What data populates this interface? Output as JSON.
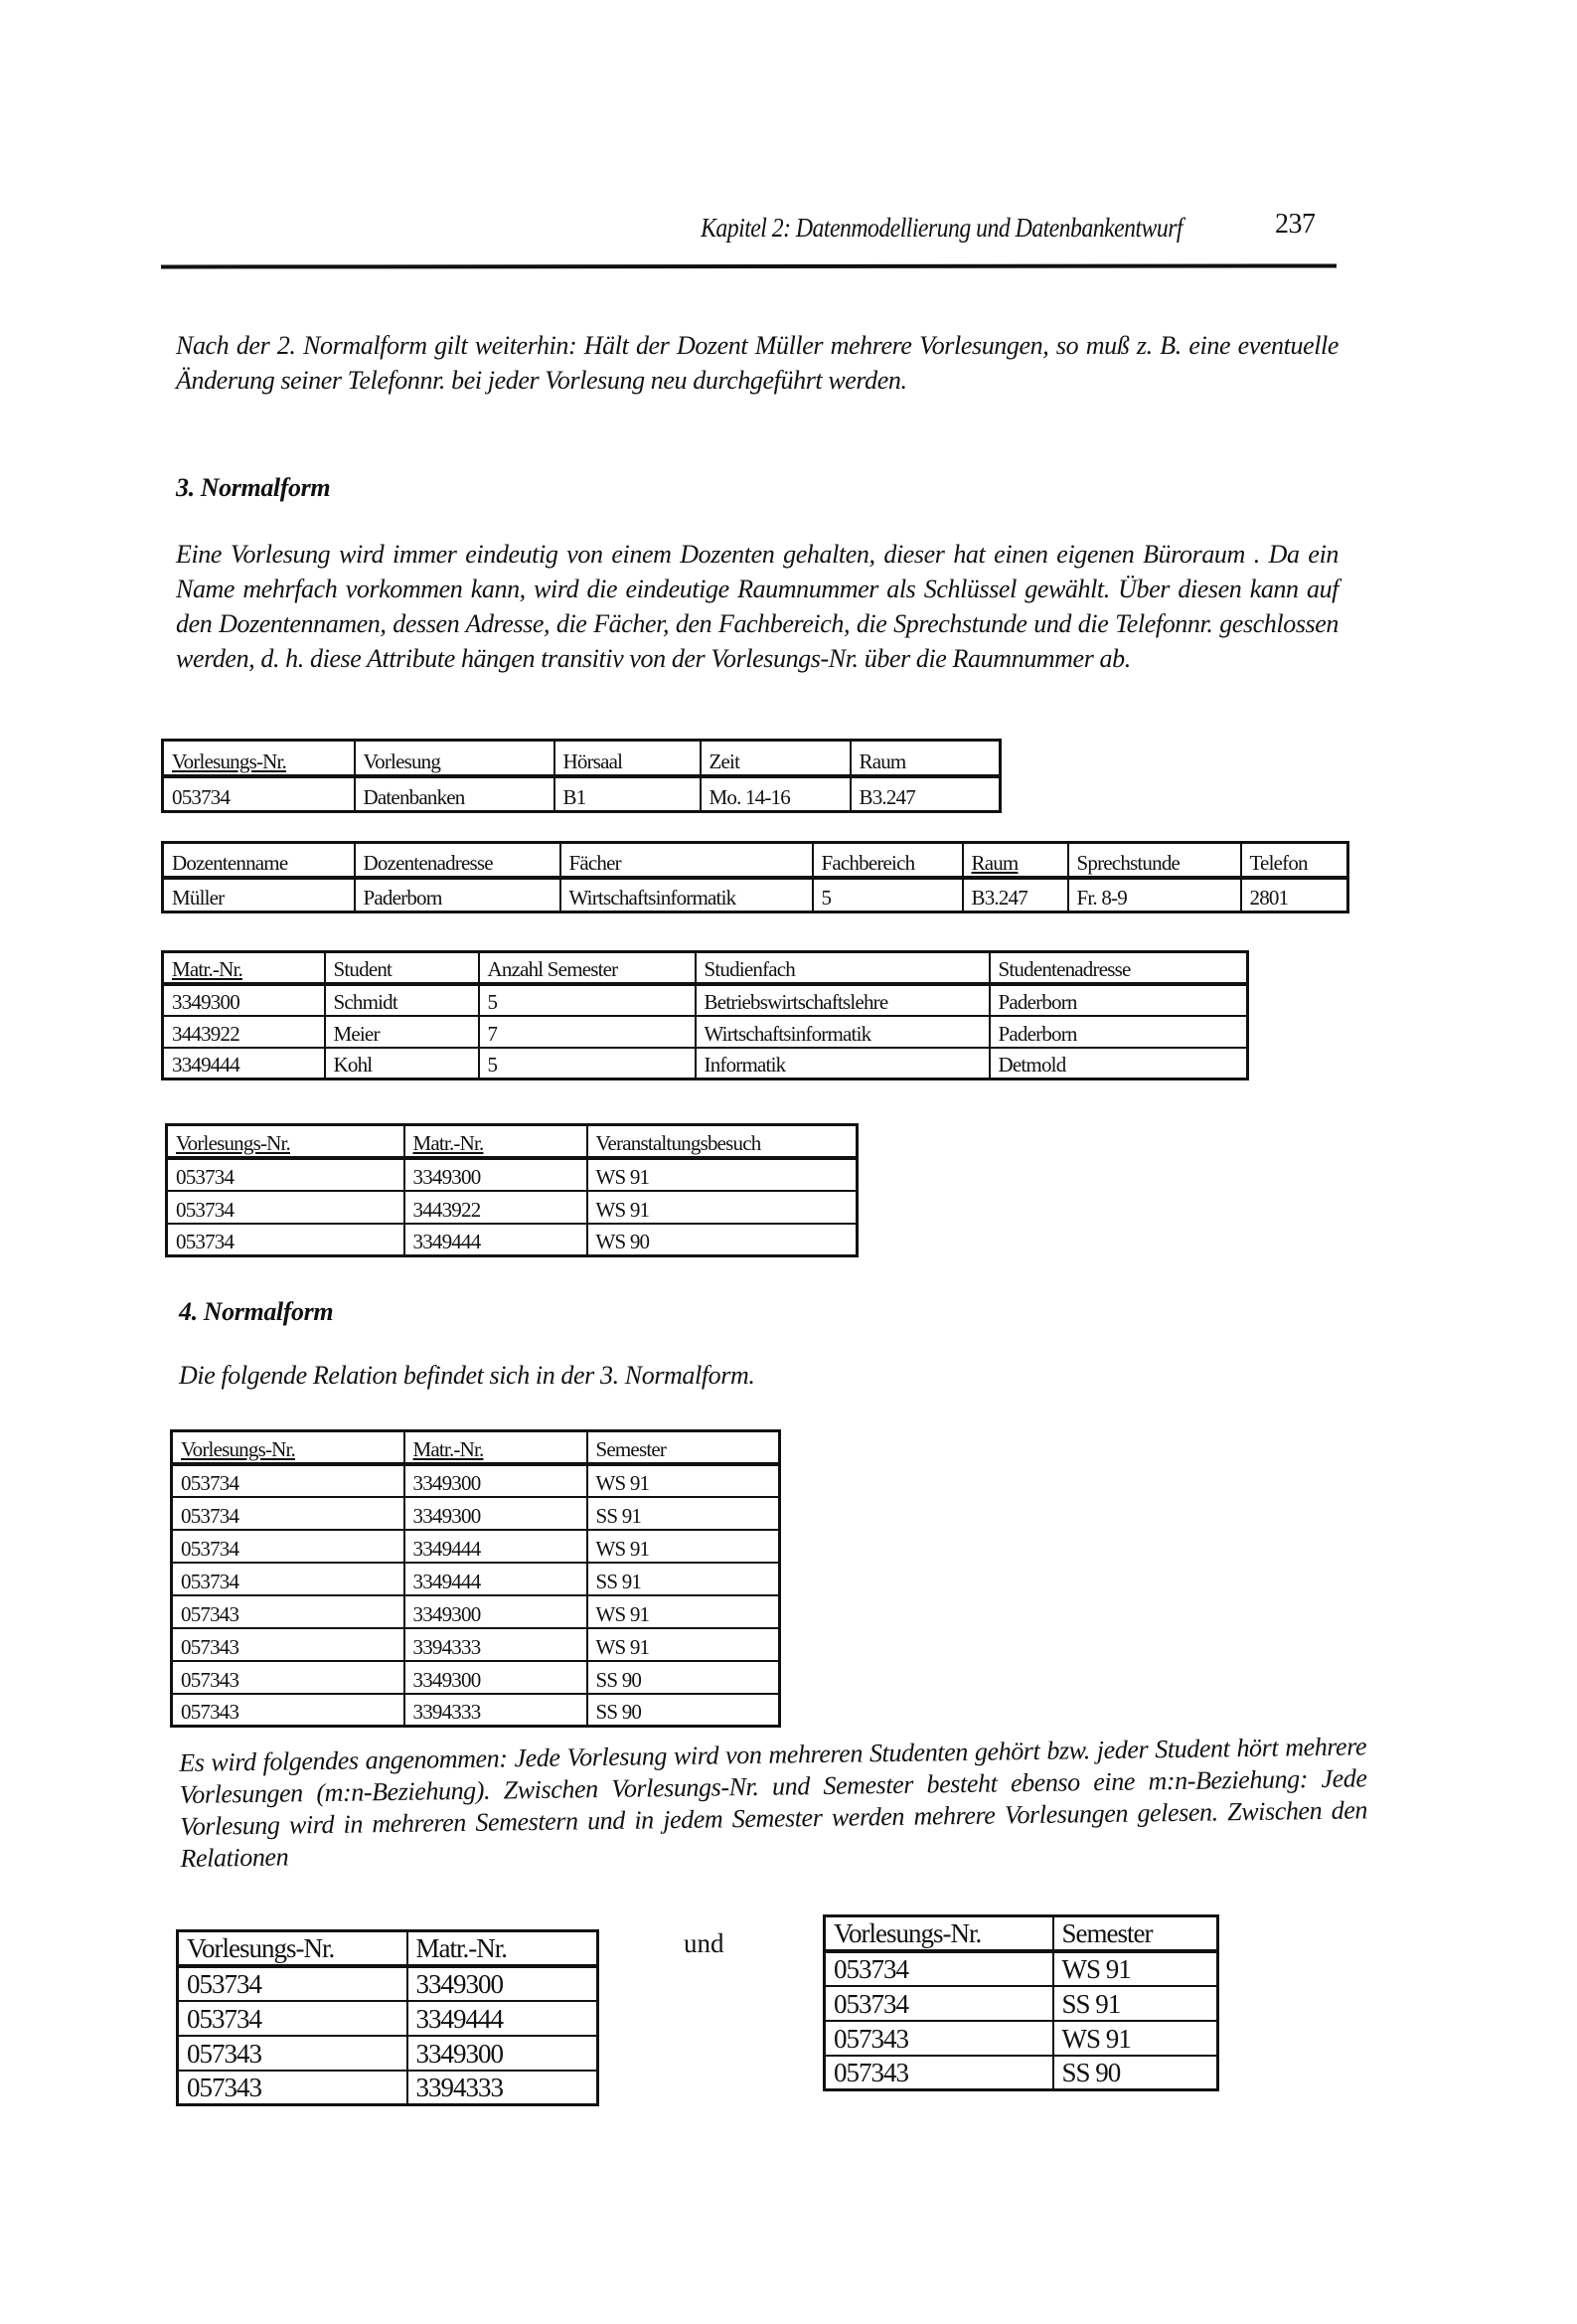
{
  "header": {
    "chapter_title": "Kapitel 2: Datenmodellierung und Datenbankentwurf",
    "page_number": "237"
  },
  "paragraphs": {
    "p1": "Nach der 2. Normalform gilt weiterhin: Hält der Dozent Müller mehrere Vorlesungen, so muß z. B. eine eventuelle Änderung seiner Telefonnr. bei jeder Vorlesung neu durchgeführt werden.",
    "h3": "3. Normalform",
    "p2": "Eine Vorlesung wird immer eindeutig von einem Dozenten gehalten, dieser hat einen eigenen Büroraum . Da ein Name mehrfach vorkommen kann, wird die eindeutige Raumnummer als Schlüssel gewählt. Über diesen kann auf den Dozentennamen, dessen Adresse, die Fächer, den Fachbereich, die Sprechstunde und die Telefonnr. geschlossen werden, d. h. diese Attribute hängen transitiv von der Vorlesungs-Nr. über die Raumnummer ab.",
    "h4": "4. Normalform",
    "p3": "Die folgende Relation befindet sich in der 3. Normalform.",
    "p4": "Es wird folgendes angenommen: Jede Vorlesung wird von mehreren Studenten gehört bzw. jeder Student hört mehrere Vorlesungen (m:n-Beziehung). Zwischen Vorlesungs-Nr. und Semester besteht ebenso eine m:n-Beziehung: Jede Vorlesung wird in mehreren Semestern und in jedem Semester werden mehrere Vorlesungen gelesen. Zwischen den Relationen",
    "und": "und"
  },
  "tables": [
    {
      "columns": [
        "Vorlesungs-Nr.",
        "Vorlesung",
        "Hörsaal",
        "Zeit",
        "Raum"
      ],
      "key": [
        0
      ],
      "rows": [
        [
          "053734",
          "Datenbanken",
          "B1",
          "Mo. 14-16",
          "B3.247"
        ]
      ]
    },
    {
      "columns": [
        "Dozentenname",
        "Dozentenadresse",
        "Fächer",
        "Fachbereich",
        "Raum",
        "Sprechstunde",
        "Telefon"
      ],
      "key": [
        4
      ],
      "rows": [
        [
          "Müller",
          "Paderborn",
          "Wirtschaftsinformatik",
          "5",
          "B3.247",
          "Fr. 8-9",
          "2801"
        ]
      ]
    },
    {
      "columns": [
        "Matr.-Nr.",
        "Student",
        "Anzahl Semester",
        "Studienfach",
        "Studentenadresse"
      ],
      "key": [
        0
      ],
      "rows": [
        [
          "3349300",
          "Schmidt",
          "5",
          "Betriebswirtschaftslehre",
          "Paderborn"
        ],
        [
          "3443922",
          "Meier",
          "7",
          "Wirtschaftsinformatik",
          "Paderborn"
        ],
        [
          "3349444",
          "Kohl",
          "5",
          "Informatik",
          "Detmold"
        ]
      ]
    },
    {
      "columns": [
        "Vorlesungs-Nr.",
        "Matr.-Nr.",
        "Veranstaltungsbesuch"
      ],
      "key": [
        0,
        1
      ],
      "rows": [
        [
          "053734",
          "3349300",
          "WS 91"
        ],
        [
          "053734",
          "3443922",
          "WS 91"
        ],
        [
          "053734",
          "3349444",
          "WS 90"
        ]
      ]
    },
    {
      "columns": [
        "Vorlesungs-Nr.",
        "Matr.-Nr.",
        "Semester"
      ],
      "key": [
        0,
        1
      ],
      "rows": [
        [
          "053734",
          "3349300",
          "WS 91"
        ],
        [
          "053734",
          "3349300",
          "SS 91"
        ],
        [
          "053734",
          "3349444",
          "WS 91"
        ],
        [
          "053734",
          "3349444",
          "SS 91"
        ],
        [
          "057343",
          "3349300",
          "WS 91"
        ],
        [
          "057343",
          "3394333",
          "WS 91"
        ],
        [
          "057343",
          "3349300",
          "SS 90"
        ],
        [
          "057343",
          "3394333",
          "SS 90"
        ]
      ]
    },
    {
      "columns": [
        "Vorlesungs-Nr.",
        "Matr.-Nr."
      ],
      "key": [],
      "rows": [
        [
          "053734",
          "3349300"
        ],
        [
          "053734",
          "3349444"
        ],
        [
          "057343",
          "3349300"
        ],
        [
          "057343",
          "3394333"
        ]
      ]
    },
    {
      "columns": [
        "Vorlesungs-Nr.",
        "Semester"
      ],
      "key": [],
      "rows": [
        [
          "053734",
          "WS 91"
        ],
        [
          "053734",
          "SS 91"
        ],
        [
          "057343",
          "WS 91"
        ],
        [
          "057343",
          "SS 90"
        ]
      ]
    }
  ]
}
